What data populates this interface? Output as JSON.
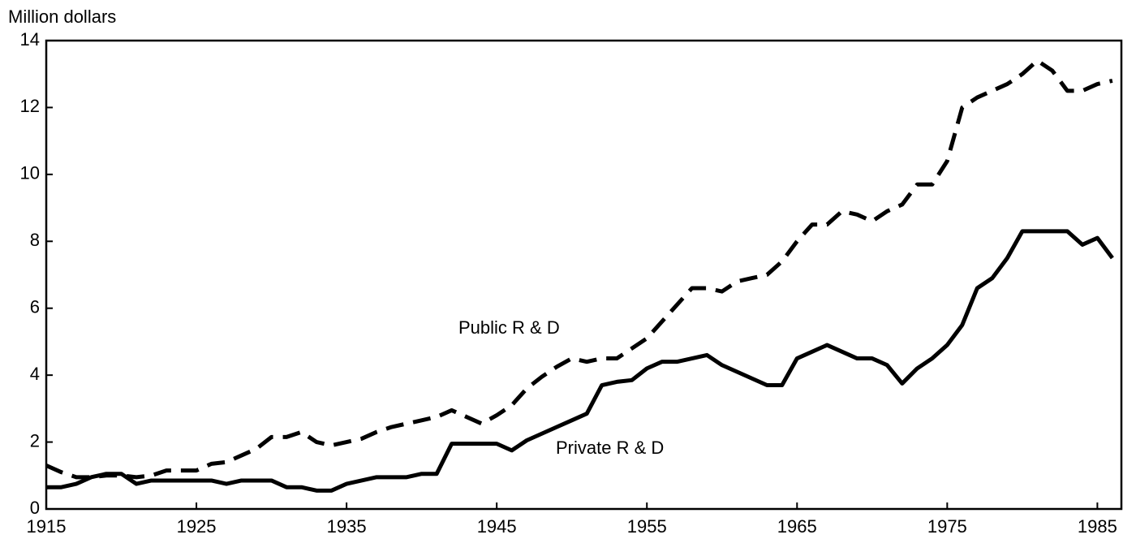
{
  "chart_data": {
    "type": "line",
    "ylabel": "Million dollars",
    "x": [
      1915,
      1916,
      1917,
      1918,
      1919,
      1920,
      1921,
      1922,
      1923,
      1924,
      1925,
      1926,
      1927,
      1928,
      1929,
      1930,
      1931,
      1932,
      1933,
      1934,
      1935,
      1936,
      1937,
      1938,
      1939,
      1940,
      1941,
      1942,
      1943,
      1944,
      1945,
      1946,
      1947,
      1948,
      1949,
      1950,
      1951,
      1952,
      1953,
      1954,
      1955,
      1956,
      1957,
      1958,
      1959,
      1960,
      1961,
      1962,
      1963,
      1964,
      1965,
      1966,
      1967,
      1968,
      1969,
      1970,
      1971,
      1972,
      1973,
      1974,
      1975,
      1976,
      1977,
      1978,
      1979,
      1980,
      1981,
      1982,
      1983,
      1984,
      1985,
      1986
    ],
    "series": [
      {
        "name": "Public R & D",
        "color": "#000000",
        "style": "dashed",
        "values": [
          1.3,
          1.1,
          0.95,
          0.95,
          1.0,
          1.0,
          0.95,
          1.0,
          1.15,
          1.15,
          1.15,
          1.35,
          1.4,
          1.6,
          1.8,
          2.15,
          2.15,
          2.3,
          2.0,
          1.9,
          2.0,
          2.1,
          2.3,
          2.45,
          2.55,
          2.65,
          2.75,
          2.95,
          2.75,
          2.55,
          2.8,
          3.1,
          3.6,
          3.95,
          4.25,
          4.5,
          4.4,
          4.5,
          4.5,
          4.8,
          5.1,
          5.6,
          6.1,
          6.6,
          6.6,
          6.5,
          6.8,
          6.9,
          7.0,
          7.4,
          8.0,
          8.5,
          8.5,
          8.9,
          8.8,
          8.6,
          8.9,
          9.1,
          9.7,
          9.7,
          10.4,
          12.0,
          12.3,
          12.5,
          12.7,
          13.0,
          13.4,
          13.1,
          12.5,
          12.5,
          12.7,
          12.8
        ]
      },
      {
        "name": "Private R & D",
        "color": "#000000",
        "style": "solid",
        "values": [
          0.65,
          0.65,
          0.75,
          0.95,
          1.05,
          1.05,
          0.75,
          0.85,
          0.85,
          0.85,
          0.85,
          0.85,
          0.75,
          0.85,
          0.85,
          0.85,
          0.65,
          0.65,
          0.55,
          0.55,
          0.75,
          0.85,
          0.95,
          0.95,
          0.95,
          1.05,
          1.05,
          1.95,
          1.95,
          1.95,
          1.95,
          1.75,
          2.05,
          2.25,
          2.45,
          2.65,
          2.85,
          3.7,
          3.8,
          3.85,
          4.2,
          4.4,
          4.4,
          4.5,
          4.6,
          4.3,
          4.1,
          3.9,
          3.7,
          3.7,
          4.5,
          4.7,
          4.9,
          4.7,
          4.5,
          4.5,
          4.3,
          3.75,
          4.2,
          4.5,
          4.9,
          5.5,
          6.6,
          6.9,
          7.5,
          8.3,
          8.3,
          8.3,
          8.3,
          7.9,
          8.1,
          7.5
        ]
      }
    ],
    "xlim": [
      1915,
      1986.6
    ],
    "xticks": [
      1915,
      1925,
      1935,
      1945,
      1955,
      1965,
      1975,
      1985
    ],
    "ylim": [
      0,
      14
    ],
    "yticks": [
      0,
      2,
      4,
      6,
      8,
      10,
      12,
      14
    ],
    "grid": false,
    "legend": false
  }
}
